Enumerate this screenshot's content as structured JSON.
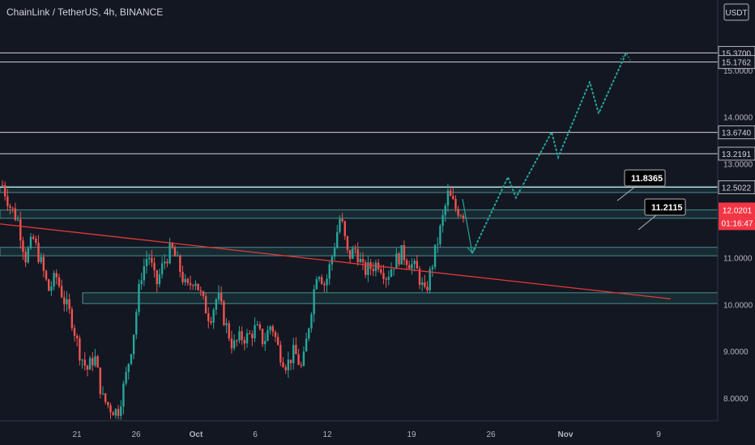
{
  "header": {
    "title": "ChainLink / TetherUS, 4h, BINANCE"
  },
  "currency_label": "USDT",
  "colors": {
    "background": "#131722",
    "up": "#26a69a",
    "down": "#ef5350",
    "trendline": "#e53935",
    "projection": "#26a69a",
    "hline": "#d1d4dc",
    "zone_fill": "#1c3a3f",
    "zone_border": "#4a8c8f",
    "price_tag": "#f23645",
    "callout": "#000000"
  },
  "chart_data": {
    "type": "candlestick",
    "title": "ChainLink / TetherUS, 4h, BINANCE",
    "ylabel": "USDT",
    "ylim": [
      7.0,
      16.5
    ],
    "y_ticks": [
      "15.0000",
      "14.0000",
      "13.0000",
      "11.0000",
      "10.0000",
      "9.0000",
      "8.0000"
    ],
    "x_ticks": [
      "21",
      "26",
      "Oct",
      "6",
      "12",
      "19",
      "26",
      "Nov",
      "9"
    ],
    "horizontal_levels": [
      "15.3700",
      "15.1762",
      "13.6740",
      "13.2191",
      "12.5022"
    ],
    "current_price": "12.0201",
    "countdown": "01:16:47",
    "callouts": [
      "11.8365",
      "11.2115"
    ],
    "zones": [
      {
        "from": 12.39,
        "to": 12.52
      },
      {
        "from": 11.84,
        "to": 12.02
      },
      {
        "from": 11.04,
        "to": 11.22
      },
      {
        "from": 10.02,
        "to": 10.25
      }
    ],
    "trendline": {
      "start": 11.72,
      "end": 10.12
    },
    "projection_path": [
      11.1,
      11.92,
      11.74,
      12.72,
      12.28,
      13.68,
      13.14,
      14.75,
      14.08,
      15.37
    ],
    "price_path": [
      12.55,
      12.1,
      11.8,
      11.0,
      11.4,
      10.9,
      10.3,
      10.6,
      10.1,
      9.7,
      9.0,
      8.6,
      8.9,
      8.0,
      7.8,
      7.7,
      8.4,
      9.3,
      10.6,
      11.1,
      10.4,
      10.9,
      11.2,
      10.8,
      10.3,
      10.6,
      10.1,
      9.7,
      10.2,
      9.6,
      9.1,
      9.3,
      9.3,
      9.5,
      9.2,
      9.6,
      9.0,
      8.7,
      9.0,
      8.6,
      9.7,
      10.8,
      10.4,
      11.1,
      11.9,
      11.0,
      11.2,
      10.7,
      10.8,
      10.9,
      10.6,
      10.9,
      11.1,
      10.9,
      10.7,
      10.2,
      10.9,
      11.6,
      12.35,
      12.05,
      11.95
    ]
  }
}
